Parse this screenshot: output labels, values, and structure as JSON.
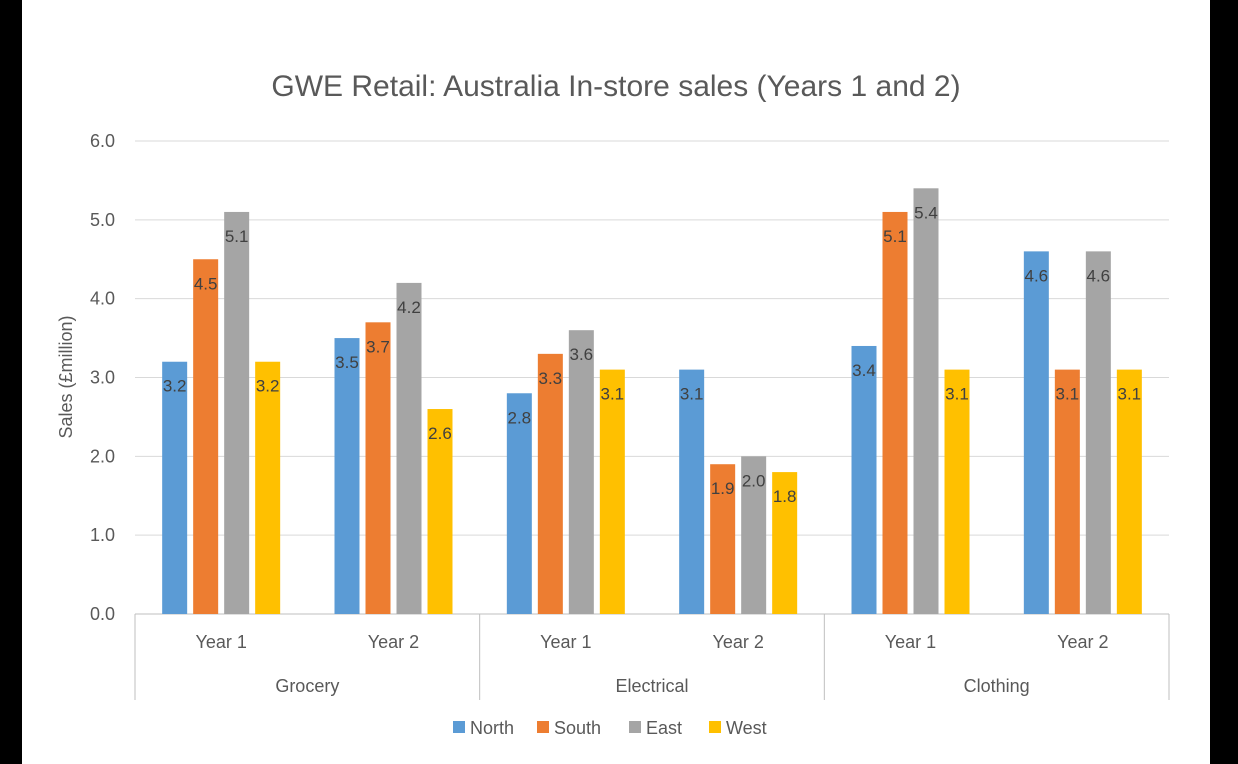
{
  "chart_data": {
    "type": "bar",
    "title": "GWE Retail: Australia In-store sales (Years 1 and 2)",
    "ylabel": "Sales (£million)",
    "xlabel": "",
    "ylim": [
      0,
      6
    ],
    "ytick_step": 1,
    "ytick_labels": [
      "0.0",
      "1.0",
      "2.0",
      "3.0",
      "4.0",
      "5.0",
      "6.0"
    ],
    "groups": [
      "Grocery",
      "Electrical",
      "Clothing"
    ],
    "categories": [
      "Year 1",
      "Year 2",
      "Year 1",
      "Year 2",
      "Year 1",
      "Year 2"
    ],
    "series": [
      {
        "name": "North",
        "color": "#5B9BD5",
        "values": [
          3.2,
          3.5,
          2.8,
          3.1,
          3.4,
          4.6
        ],
        "labels": [
          "3.2",
          "3.5",
          "2.8",
          "3.1",
          "3.4",
          "4.6"
        ]
      },
      {
        "name": "South",
        "color": "#ED7D31",
        "values": [
          4.5,
          3.7,
          3.3,
          1.9,
          5.1,
          3.1
        ],
        "labels": [
          "4.5",
          "3.7",
          "3.3",
          "1.9",
          "5.1",
          "3.1"
        ]
      },
      {
        "name": "East",
        "color": "#A5A5A5",
        "values": [
          5.1,
          4.2,
          3.6,
          2.0,
          5.4,
          4.6
        ],
        "labels": [
          "5.1",
          "4.2",
          "3.6",
          "2.0",
          "5.4",
          "4.6"
        ]
      },
      {
        "name": "West",
        "color": "#FFC000",
        "values": [
          3.2,
          2.6,
          3.1,
          1.8,
          3.1,
          3.1
        ],
        "labels": [
          "3.2",
          "2.6",
          "3.1",
          "1.8",
          "3.1",
          "3.1"
        ]
      }
    ],
    "grid": true,
    "legend_position": "bottom"
  }
}
